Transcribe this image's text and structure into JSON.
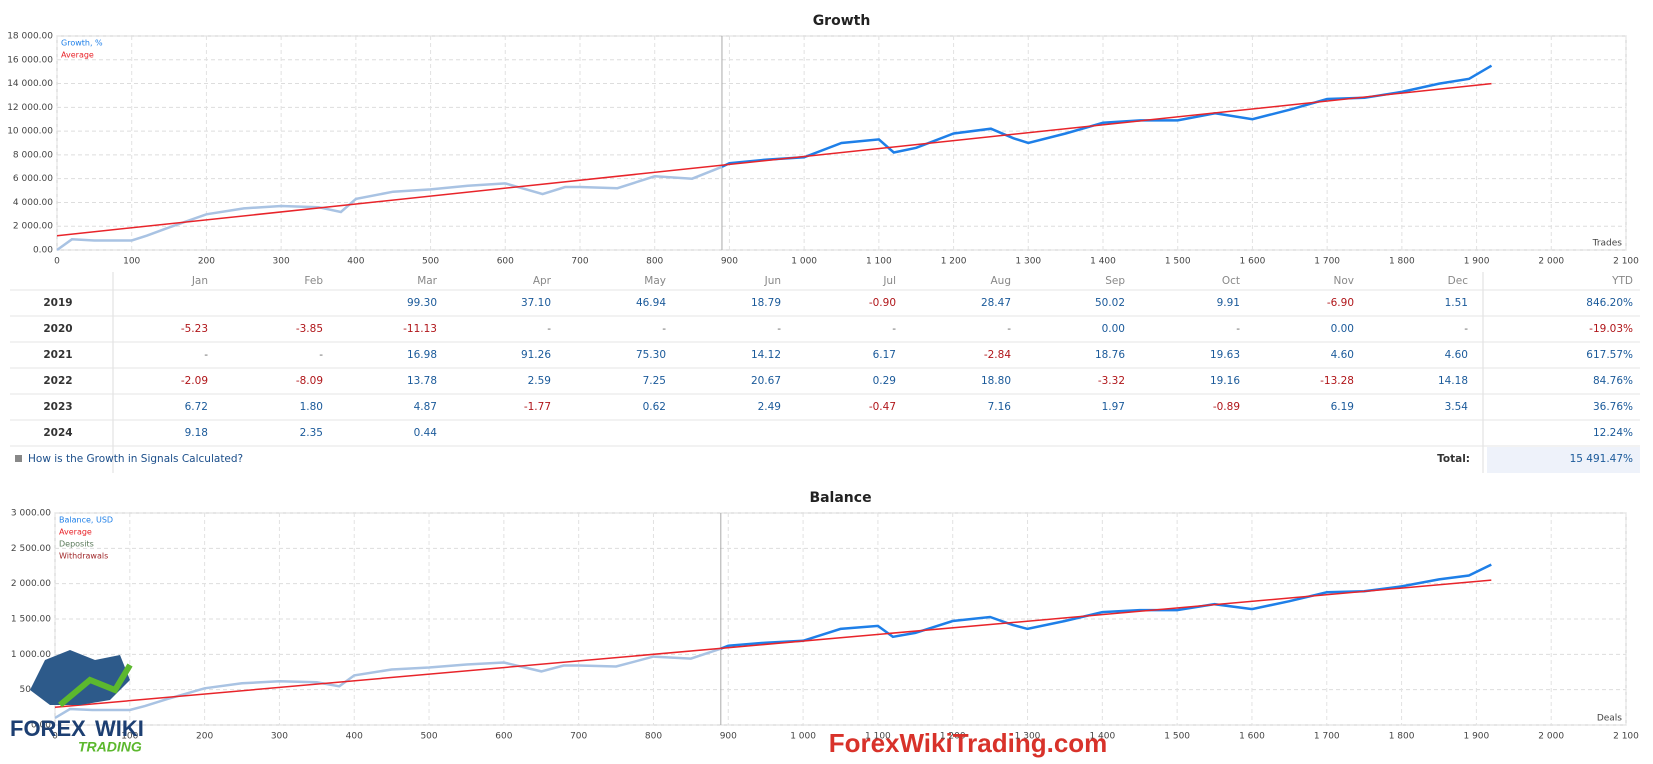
{
  "chart_data": [
    {
      "type": "line",
      "title": "Growth",
      "xlabel": "Trades",
      "grid": true,
      "legend": "upper left",
      "xlim": [
        0,
        2100
      ],
      "ylim": [
        0,
        18000
      ],
      "xticks": [
        0,
        100,
        200,
        300,
        400,
        500,
        600,
        700,
        800,
        900,
        {
          "value": 1000,
          "label": "1 000"
        },
        {
          "value": 1100,
          "label": "1 100"
        },
        {
          "value": 1200,
          "label": "1 200"
        },
        {
          "value": 1300,
          "label": "1 300"
        },
        {
          "value": 1400,
          "label": "1 400"
        },
        {
          "value": 1500,
          "label": "1 500"
        },
        {
          "value": 1600,
          "label": "1 600"
        },
        {
          "value": 1700,
          "label": "1 700"
        },
        {
          "value": 1800,
          "label": "1 800"
        },
        {
          "value": 1900,
          "label": "1 900"
        },
        {
          "value": 2000,
          "label": "2 000"
        },
        {
          "value": 2100,
          "label": "2 100"
        }
      ],
      "yticks": [
        {
          "value": 0,
          "label": "0.00"
        },
        {
          "value": 2000,
          "label": "2 000.00"
        },
        {
          "value": 4000,
          "label": "4 000.00"
        },
        {
          "value": 6000,
          "label": "6 000.00"
        },
        {
          "value": 8000,
          "label": "8 000.00"
        },
        {
          "value": 10000,
          "label": "10 000.00"
        },
        {
          "value": 12000,
          "label": "12 000.00"
        },
        {
          "value": 14000,
          "label": "14 000.00"
        },
        {
          "value": 16000,
          "label": "16 000.00"
        },
        {
          "value": 18000,
          "label": "18 000.00"
        }
      ],
      "faded_until": 890,
      "faded_color": "#a9c3e3",
      "series": [
        {
          "name": "Growth, %",
          "color": "#1e7fe8",
          "x": [
            0,
            20,
            50,
            100,
            120,
            150,
            200,
            250,
            300,
            350,
            380,
            400,
            450,
            500,
            550,
            600,
            650,
            680,
            700,
            750,
            800,
            850,
            890,
            900,
            950,
            1000,
            1050,
            1100,
            1120,
            1150,
            1200,
            1250,
            1280,
            1300,
            1350,
            1400,
            1450,
            1500,
            1550,
            1600,
            1650,
            1700,
            1750,
            1800,
            1850,
            1890,
            1920
          ],
          "values": [
            0,
            900,
            800,
            800,
            1200,
            1900,
            3000,
            3500,
            3700,
            3600,
            3200,
            4300,
            4900,
            5100,
            5400,
            5600,
            4700,
            5300,
            5300,
            5200,
            6200,
            6000,
            7000,
            7300,
            7600,
            7800,
            9000,
            9300,
            8200,
            8600,
            9800,
            10200,
            9400,
            9000,
            9800,
            10700,
            10900,
            10900,
            11500,
            11000,
            11800,
            12700,
            12800,
            13300,
            14000,
            14400,
            15500
          ]
        },
        {
          "name": "Average",
          "color": "#e8242a",
          "x": [
            0,
            1920
          ],
          "values": [
            1200,
            14000
          ]
        }
      ]
    },
    {
      "type": "line",
      "title": "Balance",
      "xlabel": "Deals",
      "grid": true,
      "legend": "upper left",
      "xlim": [
        0,
        2100
      ],
      "ylim": [
        0,
        3000
      ],
      "xticks": [
        0,
        100,
        200,
        300,
        400,
        500,
        600,
        700,
        800,
        900,
        {
          "value": 1000,
          "label": "1 000"
        },
        {
          "value": 1100,
          "label": "1 100"
        },
        {
          "value": 1200,
          "label": "1 200"
        },
        {
          "value": 1300,
          "label": "1 300"
        },
        {
          "value": 1400,
          "label": "1 400"
        },
        {
          "value": 1500,
          "label": "1 500"
        },
        {
          "value": 1600,
          "label": "1 600"
        },
        {
          "value": 1700,
          "label": "1 700"
        },
        {
          "value": 1800,
          "label": "1 800"
        },
        {
          "value": 1900,
          "label": "1 900"
        },
        {
          "value": 2000,
          "label": "2 000"
        },
        {
          "value": 2100,
          "label": "2 100"
        }
      ],
      "yticks": [
        {
          "value": 0,
          "label": "0.00"
        },
        {
          "value": 500,
          "label": "500.00"
        },
        {
          "value": 1000,
          "label": "1 000.00"
        },
        {
          "value": 1500,
          "label": "1 500.00"
        },
        {
          "value": 2000,
          "label": "2 000.00"
        },
        {
          "value": 2500,
          "label": "2 500.00"
        },
        {
          "value": 3000,
          "label": "3 000.00"
        }
      ],
      "faded_until": 890,
      "faded_color": "#a9c3e3",
      "series": [
        {
          "name": "Balance, USD",
          "color": "#1e7fe8",
          "x": [
            0,
            20,
            50,
            100,
            120,
            150,
            200,
            250,
            300,
            350,
            380,
            400,
            450,
            500,
            550,
            600,
            650,
            680,
            700,
            750,
            800,
            850,
            890,
            900,
            950,
            1000,
            1050,
            1100,
            1120,
            1150,
            1200,
            1250,
            1280,
            1300,
            1350,
            1400,
            1450,
            1500,
            1550,
            1600,
            1650,
            1700,
            1750,
            1800,
            1850,
            1890,
            1920
          ],
          "values": [
            100,
            226,
            212,
            212,
            268,
            366,
            520,
            590,
            618,
            604,
            548,
            702,
            786,
            814,
            856,
            884,
            758,
            842,
            842,
            828,
            968,
            940,
            1080,
            1122,
            1164,
            1192,
            1360,
            1402,
            1248,
            1304,
            1472,
            1528,
            1416,
            1360,
            1472,
            1598,
            1626,
            1626,
            1710,
            1640,
            1752,
            1878,
            1892,
            1962,
            2060,
            2116,
            2270
          ]
        },
        {
          "name": "Average",
          "color": "#e8242a",
          "x": [
            0,
            1920
          ],
          "values": [
            250,
            2050
          ]
        },
        {
          "name": "Deposits",
          "color": "#5a7a5a",
          "x": [],
          "values": []
        },
        {
          "name": "Withdrawals",
          "color": "#a0282a",
          "x": [],
          "values": []
        }
      ]
    }
  ],
  "table": {
    "headers": [
      "Jan",
      "Feb",
      "Mar",
      "Apr",
      "May",
      "Jun",
      "Jul",
      "Aug",
      "Sep",
      "Oct",
      "Nov",
      "Dec",
      "YTD"
    ],
    "rows": [
      [
        "2019",
        null,
        null,
        "99.30",
        "37.10",
        "46.94",
        "18.79",
        "-0.90",
        "28.47",
        "50.02",
        "9.91",
        "-6.90",
        "1.51",
        "846.20%"
      ],
      [
        "2020",
        "-5.23",
        "-3.85",
        "-11.13",
        "-",
        "-",
        "-",
        "-",
        "-",
        "0.00",
        "-",
        "0.00",
        "-",
        "-19.03%"
      ],
      [
        "2021",
        "-",
        "-",
        "16.98",
        "91.26",
        "75.30",
        "14.12",
        "6.17",
        "-2.84",
        "18.76",
        "19.63",
        "4.60",
        "4.60",
        "617.57%"
      ],
      [
        "2022",
        "-2.09",
        "-8.09",
        "13.78",
        "2.59",
        "7.25",
        "20.67",
        "0.29",
        "18.80",
        "-3.32",
        "19.16",
        "-13.28",
        "14.18",
        "84.76%"
      ],
      [
        "2023",
        "6.72",
        "1.80",
        "4.87",
        "-1.77",
        "0.62",
        "2.49",
        "-0.47",
        "7.16",
        "1.97",
        "-0.89",
        "6.19",
        "3.54",
        "36.76%"
      ],
      [
        "2024",
        "9.18",
        "2.35",
        "0.44",
        null,
        null,
        null,
        null,
        null,
        null,
        null,
        null,
        null,
        "12.24%"
      ]
    ]
  },
  "footer": {
    "link": "How is the Growth in Signals Calculated?",
    "total_label": "Total:",
    "total": "15 491.47%"
  },
  "watermark": "ForexWikiTrading.com",
  "logo": [
    "FOREX",
    "WIKI",
    "TRADING"
  ]
}
